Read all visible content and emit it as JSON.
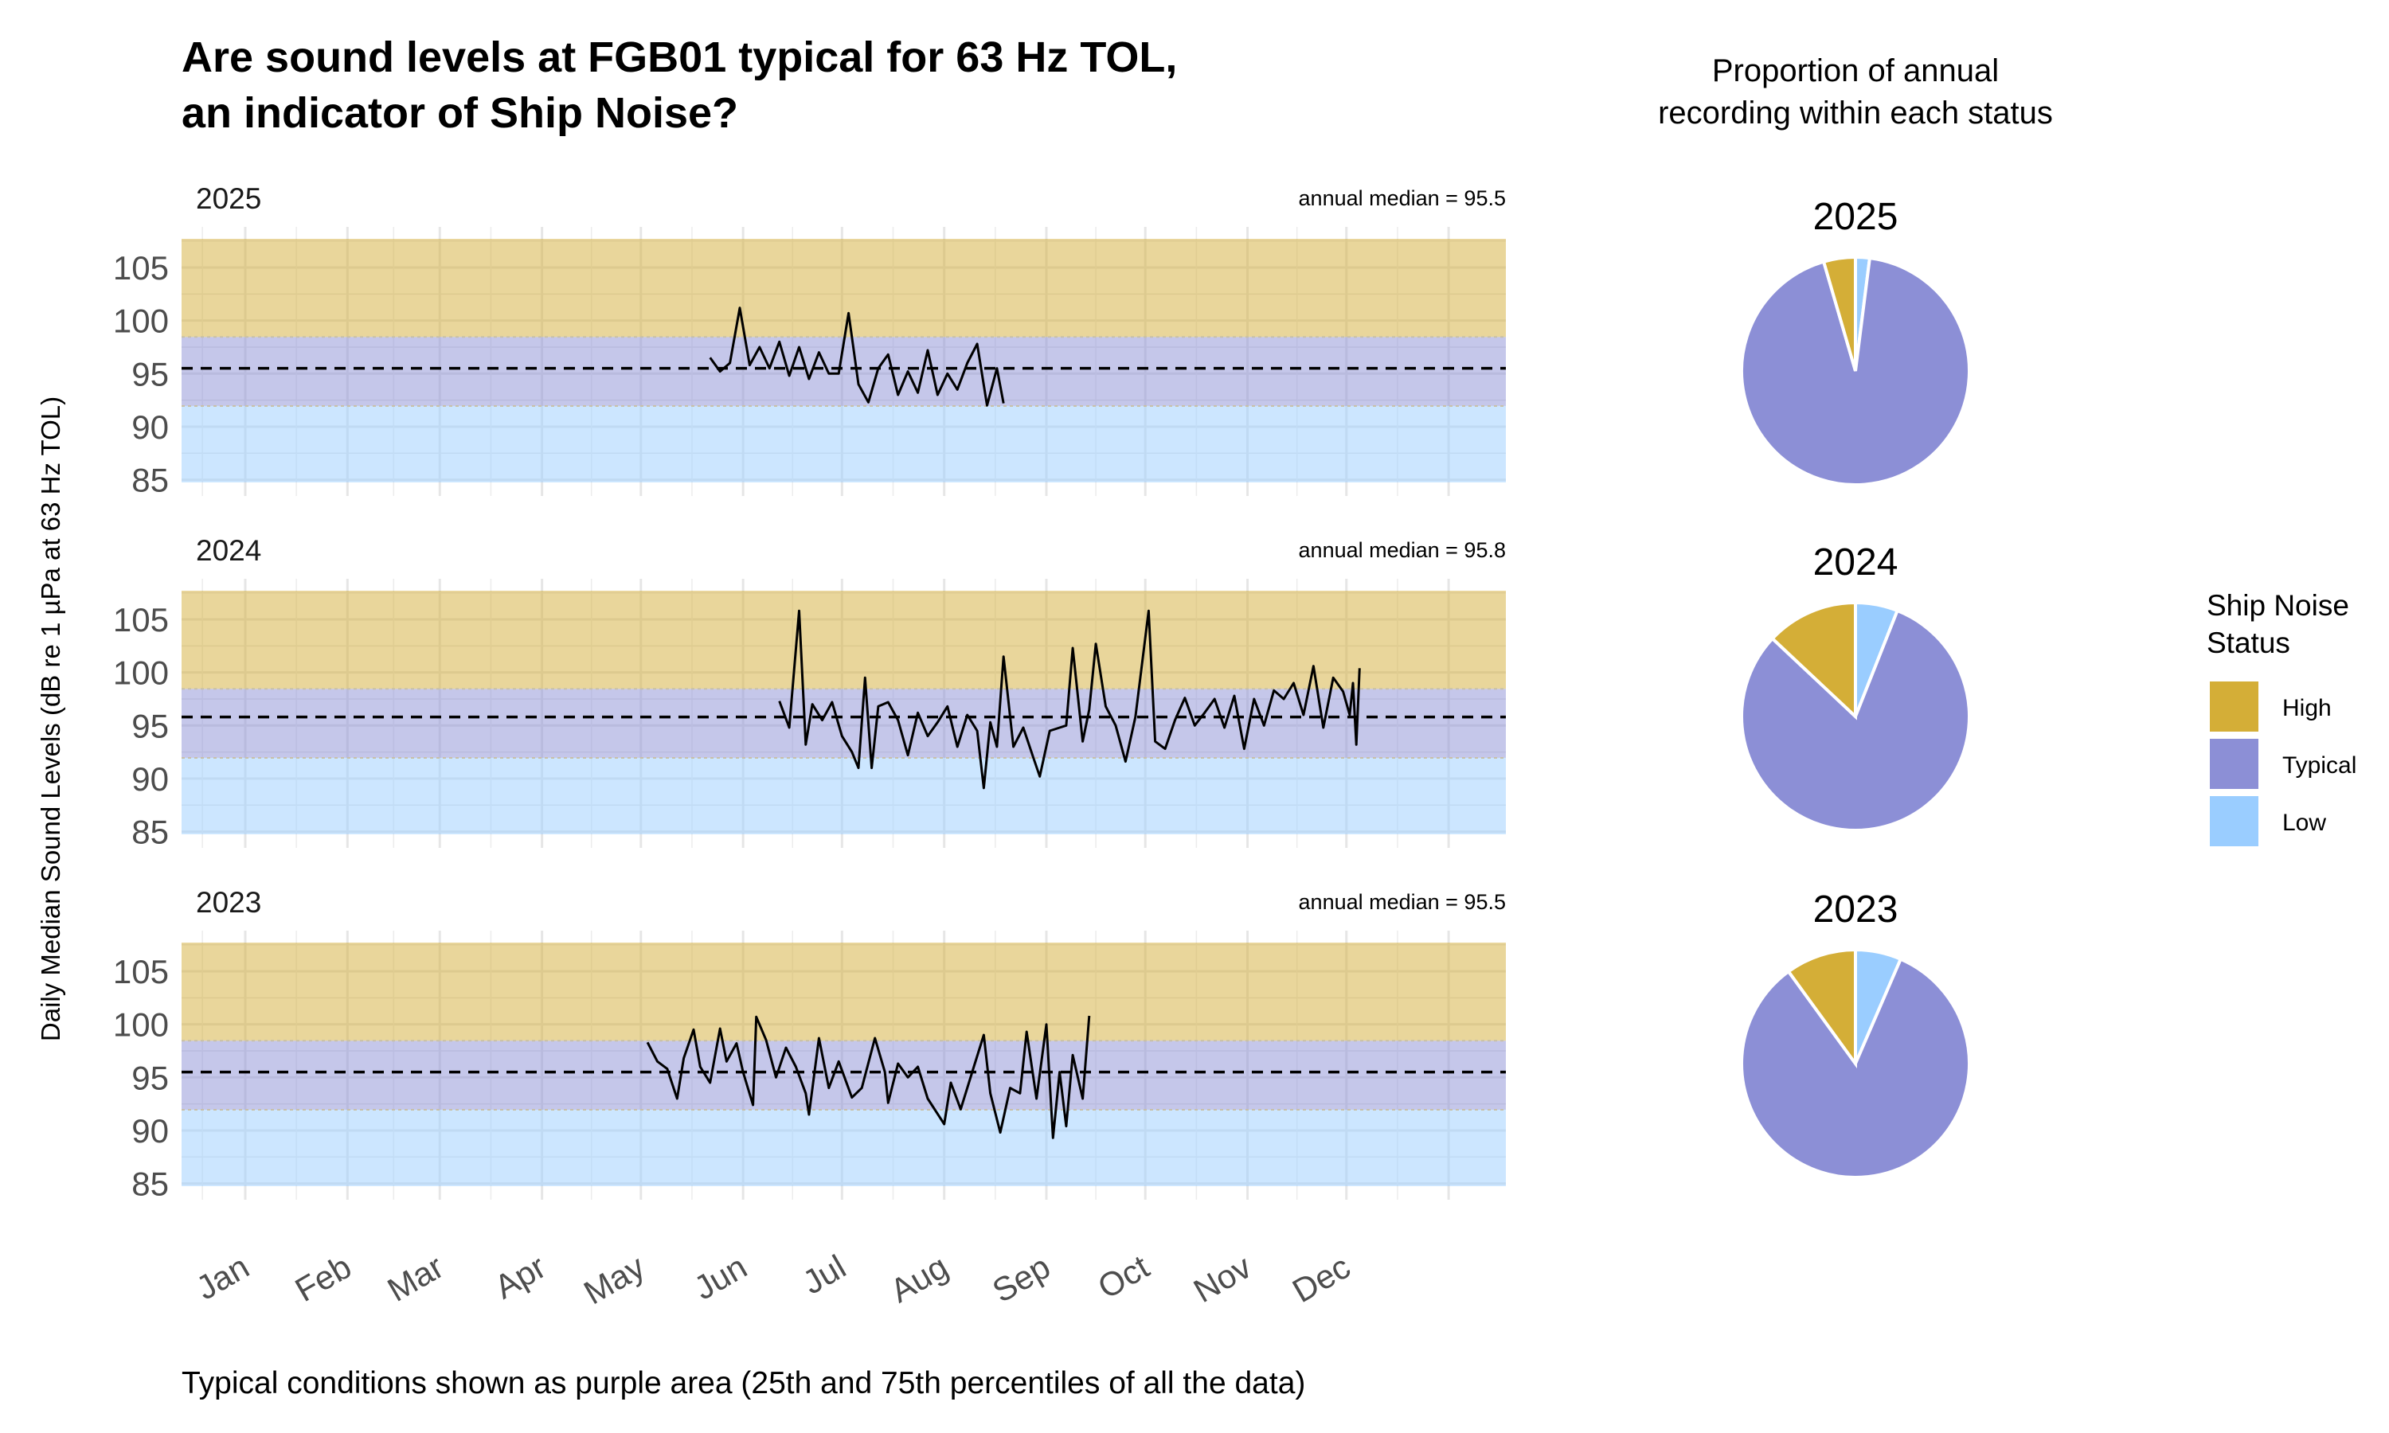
{
  "title": {
    "line1": "Are sound levels at FGB01 typical for 63 Hz TOL,",
    "line2": "an indicator of Ship Noise?"
  },
  "caption": "Typical conditions shown as purple area (25th and 75th percentiles of all the data)",
  "pie_header": {
    "line1": "Proportion of annual",
    "line2": "recording within each status"
  },
  "legend": {
    "title_line1": "Ship Noise",
    "title_line2": "Status",
    "items": [
      {
        "label": "High",
        "color": "#d4ae37"
      },
      {
        "label": "Typical",
        "color": "#8c8fd6"
      },
      {
        "label": "Low",
        "color": "#9acdff"
      }
    ]
  },
  "chart_data": [
    {
      "type": "line",
      "ylabel": "Daily Median Sound Levels (dB re 1 µPa at 63 Hz TOL)",
      "ylim": [
        84.75,
        107.7
      ],
      "yticks": [
        "85",
        "90",
        "95",
        "100",
        "105"
      ],
      "xticks": [
        "Jan",
        "Feb",
        "Mar",
        "Apr",
        "May",
        "Jun",
        "Jul",
        "Aug",
        "Sep",
        "Oct",
        "Nov",
        "Dec"
      ],
      "grid": true,
      "bands": {
        "low": {
          "range": [
            84.75,
            91.95
          ],
          "color": "#9acdff"
        },
        "typical": {
          "range": [
            91.95,
            98.45
          ],
          "color": "#8c8fd6"
        },
        "high": {
          "range": [
            98.45,
            107.7
          ],
          "color": "#d4ae37"
        }
      },
      "line_color": "#000000",
      "panels": [
        {
          "year": "2025",
          "annotation": "annual median = 95.5",
          "median": 95.5,
          "points": [
            [
              "2025-05-22",
              96.5
            ],
            [
              "2025-05-25",
              95.2
            ],
            [
              "2025-05-28",
              96.0
            ],
            [
              "2025-05-31",
              101.2
            ],
            [
              "2025-06-03",
              95.8
            ],
            [
              "2025-06-06",
              97.5
            ],
            [
              "2025-06-09",
              95.5
            ],
            [
              "2025-06-12",
              98.0
            ],
            [
              "2025-06-15",
              94.8
            ],
            [
              "2025-06-18",
              97.5
            ],
            [
              "2025-06-21",
              94.5
            ],
            [
              "2025-06-24",
              97.0
            ],
            [
              "2025-06-27",
              95.0
            ],
            [
              "2025-06-30",
              95.0
            ],
            [
              "2025-07-03",
              100.7
            ],
            [
              "2025-07-06",
              94.0
            ],
            [
              "2025-07-09",
              92.3
            ],
            [
              "2025-07-12",
              95.5
            ],
            [
              "2025-07-15",
              96.8
            ],
            [
              "2025-07-18",
              93.0
            ],
            [
              "2025-07-21",
              95.2
            ],
            [
              "2025-07-24",
              93.2
            ],
            [
              "2025-07-27",
              97.2
            ],
            [
              "2025-07-30",
              93.0
            ],
            [
              "2025-08-02",
              95.0
            ],
            [
              "2025-08-05",
              93.5
            ],
            [
              "2025-08-08",
              96.0
            ],
            [
              "2025-08-11",
              97.8
            ],
            [
              "2025-08-14",
              92.0
            ],
            [
              "2025-08-17",
              95.5
            ],
            [
              "2025-08-19",
              92.2
            ]
          ]
        },
        {
          "year": "2024",
          "annotation": "annual median = 95.8",
          "median": 95.8,
          "points": [
            [
              "2024-06-11",
              97.3
            ],
            [
              "2024-06-14",
              94.8
            ],
            [
              "2024-06-17",
              105.8
            ],
            [
              "2024-06-19",
              93.2
            ],
            [
              "2024-06-21",
              97.0
            ],
            [
              "2024-06-24",
              95.5
            ],
            [
              "2024-06-27",
              97.2
            ],
            [
              "2024-06-30",
              94.0
            ],
            [
              "2024-07-03",
              92.5
            ],
            [
              "2024-07-05",
              91.0
            ],
            [
              "2024-07-07",
              99.5
            ],
            [
              "2024-07-09",
              91.0
            ],
            [
              "2024-07-11",
              96.8
            ],
            [
              "2024-07-14",
              97.2
            ],
            [
              "2024-07-17",
              95.5
            ],
            [
              "2024-07-20",
              92.2
            ],
            [
              "2024-07-23",
              96.2
            ],
            [
              "2024-07-26",
              94.0
            ],
            [
              "2024-07-29",
              95.3
            ],
            [
              "2024-08-01",
              96.8
            ],
            [
              "2024-08-04",
              93.0
            ],
            [
              "2024-08-07",
              96.0
            ],
            [
              "2024-08-10",
              94.5
            ],
            [
              "2024-08-12",
              89.1
            ],
            [
              "2024-08-14",
              95.3
            ],
            [
              "2024-08-16",
              93.0
            ],
            [
              "2024-08-18",
              101.5
            ],
            [
              "2024-08-21",
              93.0
            ],
            [
              "2024-08-24",
              94.8
            ],
            [
              "2024-08-27",
              92.0
            ],
            [
              "2024-08-29",
              90.2
            ],
            [
              "2024-09-01",
              94.5
            ],
            [
              "2024-09-04",
              94.8
            ],
            [
              "2024-09-06",
              95.0
            ],
            [
              "2024-09-08",
              102.3
            ],
            [
              "2024-09-11",
              93.5
            ],
            [
              "2024-09-13",
              96.5
            ],
            [
              "2024-09-15",
              102.7
            ],
            [
              "2024-09-18",
              96.8
            ],
            [
              "2024-09-21",
              95.0
            ],
            [
              "2024-09-24",
              91.6
            ],
            [
              "2024-09-27",
              95.8
            ],
            [
              "2024-10-01",
              105.8
            ],
            [
              "2024-10-03",
              93.5
            ],
            [
              "2024-10-06",
              92.8
            ],
            [
              "2024-10-09",
              95.5
            ],
            [
              "2024-10-12",
              97.6
            ],
            [
              "2024-10-15",
              95.0
            ],
            [
              "2024-10-18",
              96.2
            ],
            [
              "2024-10-21",
              97.5
            ],
            [
              "2024-10-24",
              94.8
            ],
            [
              "2024-10-27",
              97.8
            ],
            [
              "2024-10-30",
              92.8
            ],
            [
              "2024-11-02",
              97.5
            ],
            [
              "2024-11-05",
              95.0
            ],
            [
              "2024-11-08",
              98.3
            ],
            [
              "2024-11-11",
              97.5
            ],
            [
              "2024-11-14",
              99.0
            ],
            [
              "2024-11-17",
              96.0
            ],
            [
              "2024-11-20",
              100.6
            ],
            [
              "2024-11-23",
              94.8
            ],
            [
              "2024-11-26",
              99.5
            ],
            [
              "2024-11-29",
              98.2
            ],
            [
              "2024-12-01",
              96.0
            ],
            [
              "2024-12-02",
              99.0
            ],
            [
              "2024-12-03",
              93.2
            ],
            [
              "2024-12-04",
              100.4
            ]
          ]
        },
        {
          "year": "2023",
          "annotation": "annual median = 95.5",
          "median": 95.5,
          "points": [
            [
              "2023-05-03",
              98.3
            ],
            [
              "2023-05-06",
              96.5
            ],
            [
              "2023-05-09",
              95.8
            ],
            [
              "2023-05-12",
              93.0
            ],
            [
              "2023-05-14",
              96.8
            ],
            [
              "2023-05-17",
              99.5
            ],
            [
              "2023-05-19",
              96.0
            ],
            [
              "2023-05-22",
              94.5
            ],
            [
              "2023-05-25",
              99.6
            ],
            [
              "2023-05-27",
              96.5
            ],
            [
              "2023-05-30",
              98.2
            ],
            [
              "2023-06-01",
              95.5
            ],
            [
              "2023-06-04",
              92.4
            ],
            [
              "2023-06-05",
              100.7
            ],
            [
              "2023-06-08",
              98.5
            ],
            [
              "2023-06-11",
              95.0
            ],
            [
              "2023-06-14",
              97.8
            ],
            [
              "2023-06-17",
              96.0
            ],
            [
              "2023-06-20",
              93.5
            ],
            [
              "2023-06-21",
              91.5
            ],
            [
              "2023-06-24",
              98.7
            ],
            [
              "2023-06-27",
              94.0
            ],
            [
              "2023-06-30",
              96.5
            ],
            [
              "2023-07-04",
              93.1
            ],
            [
              "2023-07-07",
              94.0
            ],
            [
              "2023-07-11",
              98.7
            ],
            [
              "2023-07-14",
              95.5
            ],
            [
              "2023-07-15",
              92.6
            ],
            [
              "2023-07-18",
              96.3
            ],
            [
              "2023-07-21",
              95.0
            ],
            [
              "2023-07-24",
              96.0
            ],
            [
              "2023-07-27",
              93.0
            ],
            [
              "2023-08-01",
              90.6
            ],
            [
              "2023-08-03",
              94.5
            ],
            [
              "2023-08-06",
              92.0
            ],
            [
              "2023-08-10",
              96.0
            ],
            [
              "2023-08-13",
              99.0
            ],
            [
              "2023-08-15",
              93.5
            ],
            [
              "2023-08-18",
              89.8
            ],
            [
              "2023-08-21",
              94.0
            ],
            [
              "2023-08-24",
              93.5
            ],
            [
              "2023-08-26",
              99.3
            ],
            [
              "2023-08-29",
              93.0
            ],
            [
              "2023-09-01",
              100.0
            ],
            [
              "2023-09-03",
              89.3
            ],
            [
              "2023-09-05",
              95.5
            ],
            [
              "2023-09-07",
              90.4
            ],
            [
              "2023-09-09",
              97.1
            ],
            [
              "2023-09-12",
              93.0
            ],
            [
              "2023-09-14",
              100.8
            ]
          ]
        }
      ]
    },
    {
      "type": "pie",
      "panels": [
        {
          "year": "2025",
          "slices": [
            {
              "status": "Low",
              "percent": 2
            },
            {
              "status": "Typical",
              "percent": 93.5
            },
            {
              "status": "High",
              "percent": 4.5
            }
          ]
        },
        {
          "year": "2024",
          "slices": [
            {
              "status": "Low",
              "percent": 6
            },
            {
              "status": "Typical",
              "percent": 81
            },
            {
              "status": "High",
              "percent": 13
            }
          ]
        },
        {
          "year": "2023",
          "slices": [
            {
              "status": "Low",
              "percent": 6.5
            },
            {
              "status": "Typical",
              "percent": 83.5
            },
            {
              "status": "High",
              "percent": 10
            }
          ]
        }
      ]
    }
  ]
}
